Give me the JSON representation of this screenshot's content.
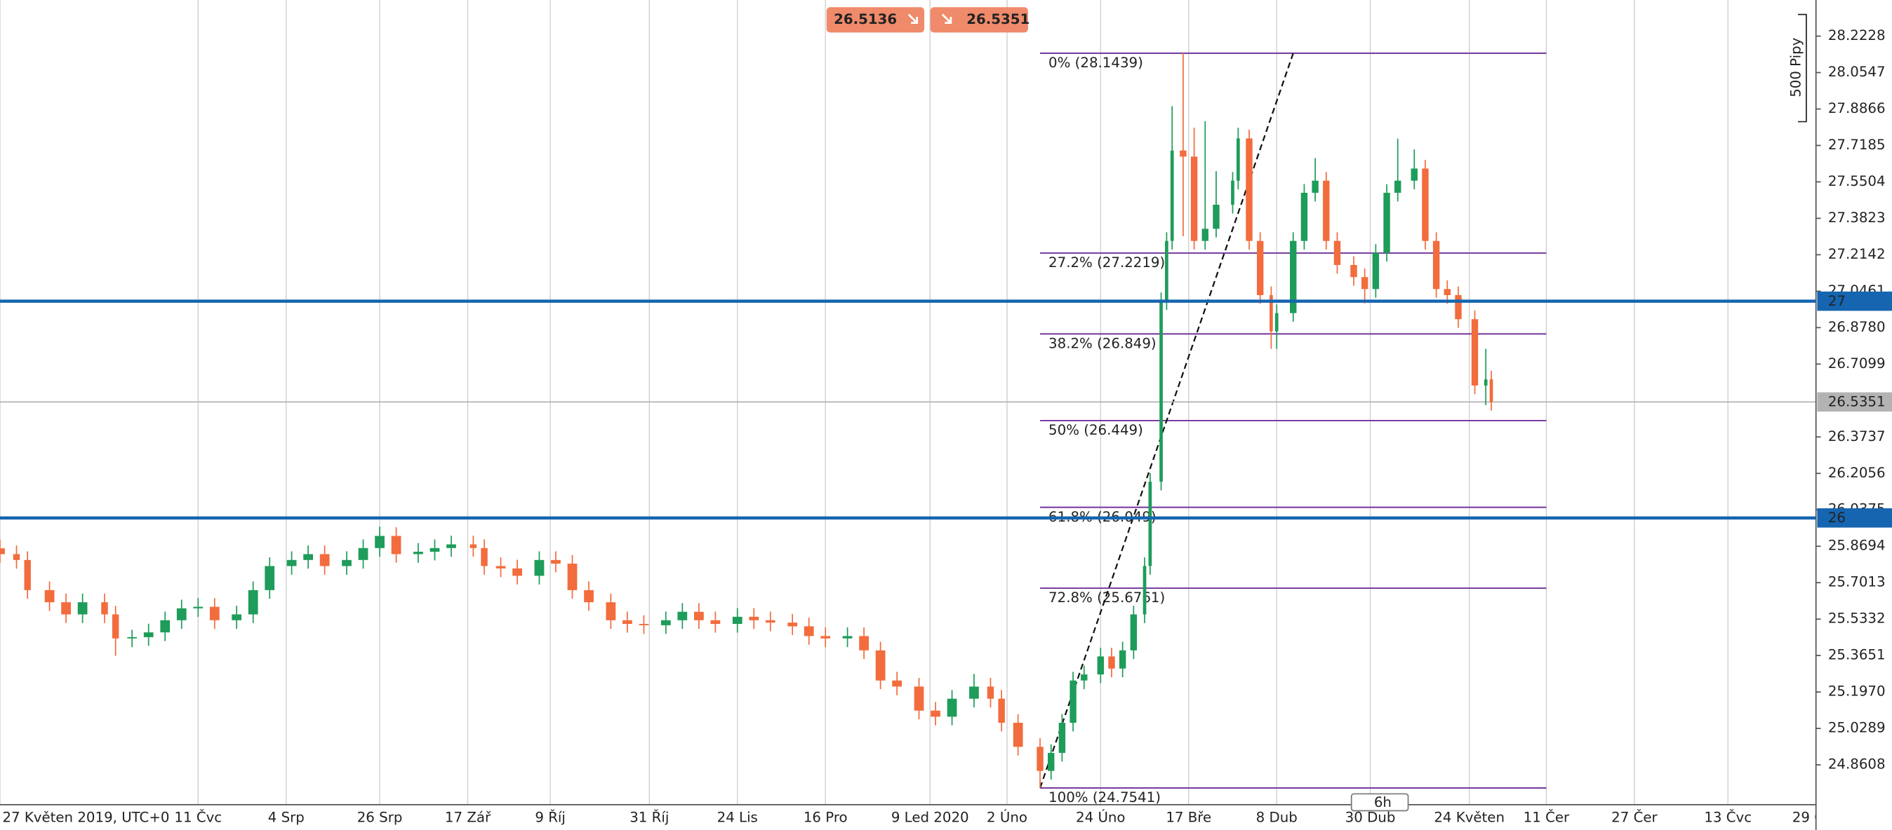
{
  "chart_data": {
    "type": "candlestick",
    "colors": {
      "up": "#1e9c5a",
      "down": "#f26c3d",
      "grid": "#cfcfcf",
      "hline": "#1565b0",
      "last": "#b3b3b3",
      "fib": "#7b3fa0",
      "quote": "#ef8a6b"
    },
    "xlim": [
      0,
      330
    ],
    "ylim": [
      24.677,
      28.3895
    ],
    "grid": true,
    "yticks": [
      28.2228,
      28.0547,
      27.8866,
      27.7185,
      27.5504,
      27.3823,
      27.2142,
      27.0461,
      {
        "value": 26.878,
        "label": "26.8780"
      },
      26.7099,
      26.3737,
      26.2056,
      26.0375,
      25.8694,
      25.7013,
      25.5332,
      25.3651,
      {
        "value": 25.197,
        "label": "25.1970"
      },
      25.0289,
      24.8608
    ],
    "xticks": [
      {
        "value": 0,
        "label": "27 Květen 2019, UTC+0"
      },
      {
        "value": 36,
        "label": "11 Čvc"
      },
      {
        "value": 52,
        "label": "4 Srp"
      },
      {
        "value": 69,
        "label": "26 Srp"
      },
      {
        "value": 85,
        "label": "17 Zář"
      },
      {
        "value": 100,
        "label": "9 Říj"
      },
      {
        "value": 118,
        "label": "31 Říj"
      },
      {
        "value": 134,
        "label": "24 Lis"
      },
      {
        "value": 150,
        "label": "16 Pro"
      },
      {
        "value": 169,
        "label": "9 Led 2020"
      },
      {
        "value": 183,
        "label": "2 Úno"
      },
      {
        "value": 200,
        "label": "24 Úno"
      },
      {
        "value": 216,
        "label": "17 Bře"
      },
      {
        "value": 232,
        "label": "8 Dub"
      },
      {
        "value": 249,
        "label": "30 Dub"
      },
      {
        "value": 267,
        "label": "24 Květen"
      },
      {
        "value": 281,
        "label": "11 Čer"
      },
      {
        "value": 297,
        "label": "27 Čer"
      },
      {
        "value": 314,
        "label": "13 Čvc"
      },
      {
        "value": 330,
        "label": "29 Čvc"
      }
    ],
    "candles": [
      [
        0,
        25.86,
        25.9,
        25.793,
        25.833
      ],
      [
        3,
        25.833,
        25.873,
        25.766,
        25.806
      ],
      [
        5,
        25.806,
        25.846,
        25.627,
        25.667
      ],
      [
        9,
        25.667,
        25.707,
        25.571,
        25.611
      ],
      [
        12,
        25.611,
        25.651,
        25.515,
        25.555
      ],
      [
        15,
        25.555,
        25.651,
        25.515,
        25.611
      ],
      [
        19,
        25.611,
        25.651,
        25.515,
        25.555
      ],
      [
        21,
        25.555,
        25.595,
        25.364,
        25.444
      ],
      [
        24,
        25.444,
        25.484,
        25.404,
        25.45
      ],
      [
        27,
        25.45,
        25.512,
        25.41,
        25.472
      ],
      [
        30,
        25.472,
        25.568,
        25.432,
        25.528
      ],
      [
        33,
        25.528,
        25.623,
        25.488,
        25.583
      ],
      [
        36,
        25.583,
        25.63,
        25.543,
        25.59
      ],
      [
        39,
        25.59,
        25.63,
        25.488,
        25.528
      ],
      [
        43,
        25.528,
        25.595,
        25.488,
        25.555
      ],
      [
        46,
        25.555,
        25.707,
        25.515,
        25.667
      ],
      [
        49,
        25.667,
        25.818,
        25.627,
        25.778
      ],
      [
        53,
        25.778,
        25.846,
        25.738,
        25.806
      ],
      [
        56,
        25.806,
        25.873,
        25.766,
        25.833
      ],
      [
        59,
        25.833,
        25.873,
        25.738,
        25.778
      ],
      [
        63,
        25.778,
        25.846,
        25.738,
        25.806
      ],
      [
        66,
        25.806,
        25.901,
        25.766,
        25.861
      ],
      [
        69,
        25.861,
        25.96,
        25.821,
        25.917
      ],
      [
        72,
        25.917,
        25.957,
        25.793,
        25.833
      ],
      [
        76,
        25.833,
        25.884,
        25.793,
        25.844
      ],
      [
        79,
        25.844,
        25.901,
        25.804,
        25.861
      ],
      [
        82,
        25.861,
        25.918,
        25.821,
        25.878
      ],
      [
        86,
        25.878,
        25.918,
        25.821,
        25.861
      ],
      [
        88,
        25.861,
        25.901,
        25.738,
        25.778
      ],
      [
        91,
        25.778,
        25.818,
        25.727,
        25.767
      ],
      [
        94,
        25.767,
        25.807,
        25.693,
        25.733
      ],
      [
        98,
        25.733,
        25.846,
        25.693,
        25.806
      ],
      [
        101,
        25.806,
        25.846,
        25.749,
        25.789
      ],
      [
        104,
        25.789,
        25.829,
        25.627,
        25.667
      ],
      [
        107,
        25.667,
        25.707,
        25.571,
        25.611
      ],
      [
        111,
        25.611,
        25.651,
        25.488,
        25.528
      ],
      [
        114,
        25.528,
        25.568,
        25.471,
        25.511
      ],
      [
        117,
        25.511,
        25.551,
        25.465,
        25.505
      ],
      [
        121,
        25.505,
        25.568,
        25.465,
        25.528
      ],
      [
        124,
        25.528,
        25.607,
        25.488,
        25.567
      ],
      [
        127,
        25.567,
        25.607,
        25.488,
        25.528
      ],
      [
        130,
        25.528,
        25.568,
        25.471,
        25.511
      ],
      [
        134,
        25.511,
        25.584,
        25.471,
        25.544
      ],
      [
        137,
        25.544,
        25.584,
        25.488,
        25.528
      ],
      [
        140,
        25.528,
        25.568,
        25.477,
        25.517
      ],
      [
        144,
        25.517,
        25.557,
        25.46,
        25.5
      ],
      [
        147,
        25.5,
        25.54,
        25.415,
        25.455
      ],
      [
        150,
        25.455,
        25.495,
        25.404,
        25.444
      ],
      [
        154,
        25.444,
        25.495,
        25.404,
        25.455
      ],
      [
        157,
        25.455,
        25.495,
        25.349,
        25.389
      ],
      [
        160,
        25.389,
        25.429,
        25.21,
        25.25
      ],
      [
        163,
        25.25,
        25.29,
        25.182,
        25.222
      ],
      [
        167,
        25.222,
        25.262,
        25.071,
        25.111
      ],
      [
        170,
        25.111,
        25.151,
        25.043,
        25.083
      ],
      [
        173,
        25.083,
        25.206,
        25.043,
        25.166
      ],
      [
        177,
        25.166,
        25.28,
        25.126,
        25.222
      ],
      [
        180,
        25.222,
        25.262,
        25.126,
        25.166
      ],
      [
        182,
        25.166,
        25.206,
        25.015,
        25.055
      ],
      [
        185,
        25.055,
        25.095,
        24.904,
        24.944
      ],
      [
        189,
        24.944,
        24.984,
        24.754,
        24.833
      ],
      [
        191,
        24.833,
        24.956,
        24.793,
        24.916
      ],
      [
        193,
        24.916,
        25.095,
        24.876,
        25.055
      ],
      [
        195,
        25.055,
        25.29,
        25.015,
        25.25
      ],
      [
        197,
        25.25,
        25.318,
        25.21,
        25.278
      ],
      [
        200,
        25.278,
        25.401,
        25.238,
        25.361
      ],
      [
        202,
        25.361,
        25.401,
        25.265,
        25.305
      ],
      [
        204,
        25.305,
        25.429,
        25.265,
        25.389
      ],
      [
        206,
        25.389,
        25.595,
        25.349,
        25.555
      ],
      [
        208,
        25.555,
        25.818,
        25.515,
        25.778
      ],
      [
        209,
        25.778,
        26.207,
        25.738,
        26.167
      ],
      [
        211,
        26.167,
        27.04,
        26.127,
        27.0
      ],
      [
        212,
        27.0,
        27.318,
        26.96,
        27.278
      ],
      [
        213,
        27.278,
        27.9,
        27.238,
        27.695
      ],
      [
        215,
        27.695,
        28.144,
        27.3,
        27.667
      ],
      [
        217,
        27.667,
        27.8,
        27.238,
        27.278
      ],
      [
        219,
        27.278,
        27.83,
        27.238,
        27.334
      ],
      [
        221,
        27.334,
        27.6,
        27.294,
        27.445
      ],
      [
        224,
        27.445,
        27.596,
        27.405,
        27.556
      ],
      [
        225,
        27.556,
        27.8,
        27.516,
        27.751
      ],
      [
        227,
        27.751,
        27.791,
        27.238,
        27.278
      ],
      [
        229,
        27.278,
        27.318,
        26.988,
        27.028
      ],
      [
        231,
        27.028,
        27.068,
        26.78,
        26.861
      ],
      [
        232,
        26.861,
        26.985,
        26.78,
        26.945
      ],
      [
        235,
        26.945,
        27.318,
        26.905,
        27.278
      ],
      [
        237,
        27.278,
        27.54,
        27.238,
        27.5
      ],
      [
        239,
        27.5,
        27.66,
        27.46,
        27.556
      ],
      [
        241,
        27.556,
        27.596,
        27.238,
        27.278
      ],
      [
        243,
        27.278,
        27.318,
        27.127,
        27.167
      ],
      [
        246,
        27.167,
        27.207,
        27.071,
        27.111
      ],
      [
        248,
        27.111,
        27.151,
        26.99,
        27.056
      ],
      [
        250,
        27.056,
        27.263,
        27.016,
        27.223
      ],
      [
        252,
        27.223,
        27.54,
        27.183,
        27.5
      ],
      [
        254,
        27.5,
        27.75,
        27.46,
        27.556
      ],
      [
        257,
        27.556,
        27.7,
        27.516,
        27.612
      ],
      [
        259,
        27.612,
        27.652,
        27.238,
        27.278
      ],
      [
        261,
        27.278,
        27.318,
        27.016,
        27.056
      ],
      [
        263,
        27.056,
        27.096,
        26.988,
        27.028
      ],
      [
        265,
        27.028,
        27.068,
        26.877,
        26.917
      ],
      [
        268,
        26.917,
        26.957,
        26.571,
        26.611
      ],
      [
        270,
        26.611,
        26.78,
        26.52,
        26.639
      ],
      [
        271,
        26.639,
        26.679,
        26.495,
        26.535
      ]
    ],
    "hlines": [
      {
        "value": 27
      },
      {
        "value": 26
      }
    ],
    "last_price": 26.5351,
    "fibonacci": {
      "x_start": 189,
      "x_end": 281,
      "levels": [
        {
          "label": "0% (28.1439)",
          "value": 28.1439
        },
        {
          "label": "27.2% (27.2219)",
          "value": 27.2219
        },
        {
          "label": "38.2% (26.849)",
          "value": 26.849
        },
        {
          "label": "50% (26.449)",
          "value": 26.449
        },
        {
          "label": "61.8% (26.049)",
          "value": 26.049
        },
        {
          "label": "72.8% (25.6761)",
          "value": 25.6761
        },
        {
          "label": "100% (24.7541)",
          "value": 24.7541
        }
      ]
    },
    "trendline": {
      "x": [
        189,
        235
      ]
    },
    "quote": {
      "bid": 26.5136,
      "ask": 26.5351
    },
    "scale_label": "500 Pipy",
    "timeframe": "6h"
  }
}
